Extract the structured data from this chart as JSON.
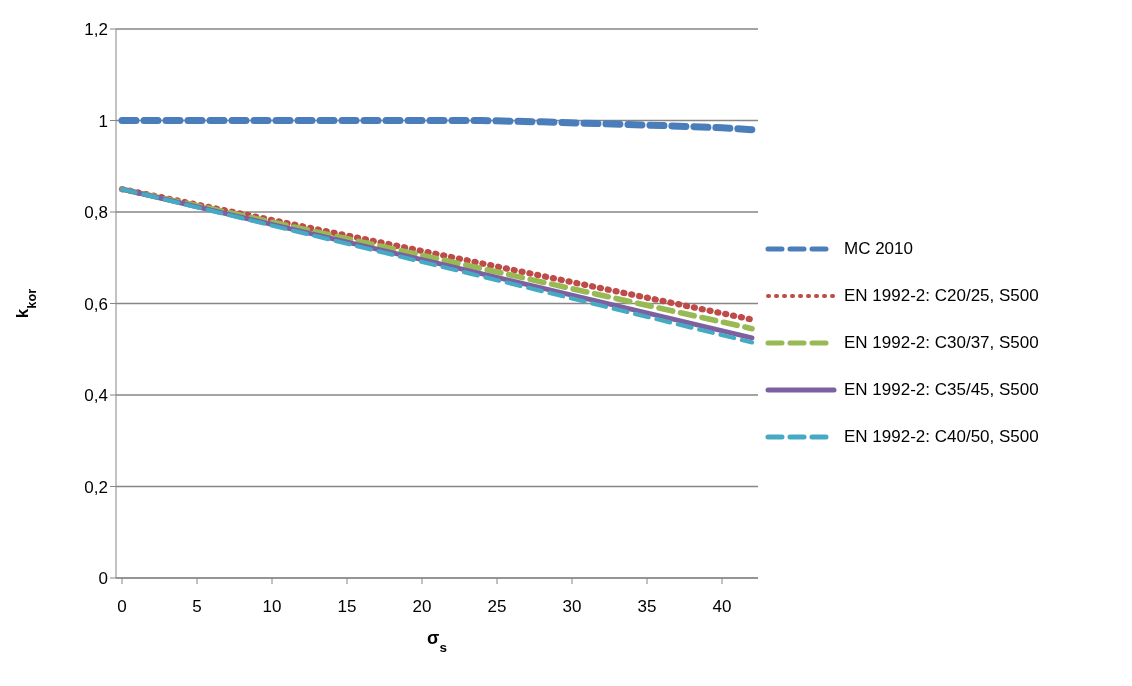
{
  "chart_data": {
    "type": "line",
    "xlabel": "σ$_{s}$",
    "ylabel": "k$_{kor}$",
    "xlim": [
      -0.4,
      42.4
    ],
    "xticks": [
      0,
      5,
      10,
      15,
      20,
      25,
      30,
      35,
      40
    ],
    "ylim": [
      0,
      1.2
    ],
    "yticks": [
      0,
      {
        "value": 0.2,
        "label": "0,2"
      },
      {
        "value": 0.4,
        "label": "0,4"
      },
      {
        "value": 0.6,
        "label": "0,6"
      },
      {
        "value": 0.8,
        "label": "0,8"
      },
      1,
      {
        "value": 1.2,
        "label": "1,2"
      }
    ],
    "grid": "y",
    "legend": "right",
    "marker": "none",
    "series": [
      {
        "name": "MC 2010",
        "color": "#4a7ebb",
        "line_style": "dashed",
        "x": [
          0,
          24,
          28,
          32,
          36,
          40,
          42
        ],
        "values": [
          1,
          1,
          0.997,
          0.993,
          0.989,
          0.984,
          0.98
        ]
      },
      {
        "name": "EN 1992-2: C20/25, S500",
        "color": "#be4b48",
        "line_style": "dotted",
        "x": [
          0,
          21,
          42
        ],
        "values": [
          0.85,
          0.708,
          0.565
        ]
      },
      {
        "name": "EN 1992-2: C30/37, S500",
        "color": "#98b954",
        "line_style": "dashed",
        "x": [
          0,
          21,
          42
        ],
        "values": [
          0.85,
          0.698,
          0.545
        ]
      },
      {
        "name": "EN 1992-2: C35/45, S500",
        "color": "#7d60a0",
        "line_style": "solid",
        "x": [
          0,
          21,
          42
        ],
        "values": [
          0.85,
          0.688,
          0.525
        ]
      },
      {
        "name": "EN 1992-2: C40/50, S500",
        "color": "#46aac5",
        "line_style": "dashed",
        "x": [
          0,
          21,
          42
        ],
        "values": [
          0.85,
          0.683,
          0.515
        ]
      }
    ]
  }
}
